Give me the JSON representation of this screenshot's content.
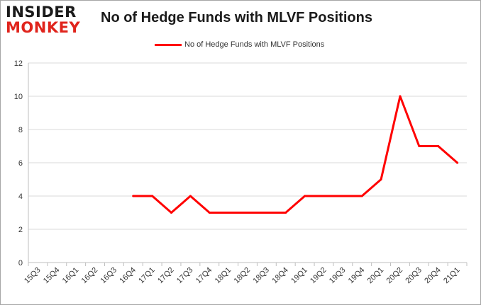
{
  "logo": {
    "line1": "INSIDER",
    "line2": "MONKEY"
  },
  "chart_data": {
    "type": "line",
    "title": "No of Hedge Funds with MLVF Positions",
    "categories": [
      "15Q3",
      "15Q4",
      "16Q1",
      "16Q2",
      "16Q3",
      "16Q4",
      "17Q1",
      "17Q2",
      "17Q3",
      "17Q4",
      "18Q1",
      "18Q2",
      "18Q3",
      "18Q4",
      "19Q1",
      "19Q2",
      "19Q3",
      "19Q4",
      "20Q1",
      "20Q2",
      "20Q3",
      "20Q4",
      "21Q1"
    ],
    "series": [
      {
        "name": "No of Hedge Funds with MLVF Positions",
        "color": "#ff0000",
        "values": [
          null,
          null,
          null,
          null,
          null,
          4,
          4,
          3,
          4,
          3,
          3,
          3,
          3,
          3,
          4,
          4,
          4,
          4,
          5,
          10,
          7,
          7,
          6
        ]
      }
    ],
    "yticks": [
      0,
      2,
      4,
      6,
      8,
      10,
      12
    ],
    "ylim": [
      0,
      12
    ],
    "grid": true,
    "legend_position": "top"
  }
}
